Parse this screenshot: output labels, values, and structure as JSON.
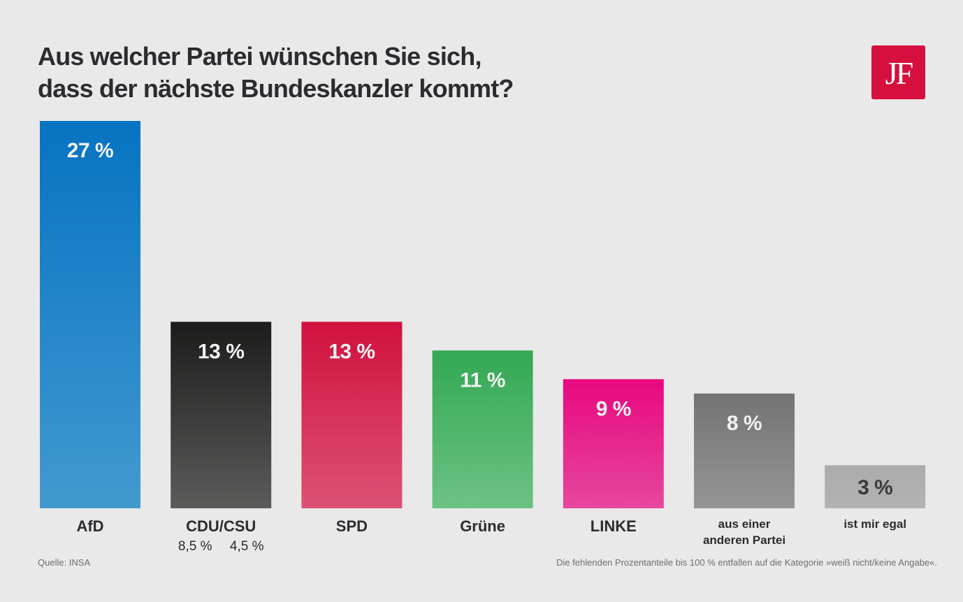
{
  "header": {
    "title_line1": "Aus welcher Partei wünschen Sie sich,",
    "title_line2": "dass der nächste Bundeskanzler kommt?",
    "logo_text": "JF"
  },
  "footer": {
    "source": "Quelle: INSA",
    "note": "Die fehlenden Prozentanteile bis 100 % entfallen auf die Kategorie »weiß nicht/keine Angabe«."
  },
  "colors": {
    "background": "#e9e9e9",
    "logo": "#d5103f",
    "text": "#2b2b30"
  },
  "chart_data": {
    "type": "bar",
    "title": "Aus welcher Partei wünschen Sie sich, dass der nächste Bundeskanzler kommt?",
    "xlabel": "",
    "ylabel": "",
    "ylim": [
      0,
      27
    ],
    "grid": false,
    "categories": [
      "AfD",
      "CDU/CSU",
      "SPD",
      "Grüne",
      "LINKE",
      "aus einer anderen Partei",
      "ist mir egal"
    ],
    "values": [
      27,
      13,
      13,
      11,
      9,
      8,
      3
    ],
    "unit": "%",
    "bars": [
      {
        "category": "AfD",
        "label_lines": [
          "AfD"
        ],
        "value": 27,
        "value_label": "27 %",
        "color_top": "#0673c2",
        "color_bottom": "#4299cf",
        "text_color": "#f2f2f2"
      },
      {
        "category": "CDU/CSU",
        "label_lines": [
          "CDU/CSU"
        ],
        "sub_labels": [
          "8,5 %",
          "4,5 %"
        ],
        "sub_values": {
          "CDU": 8.5,
          "CSU": 4.5
        },
        "value": 13,
        "value_label": "13 %",
        "color_top": "#1c1c1b",
        "color_bottom": "#5b5b5a",
        "text_color": "#f2f2f2"
      },
      {
        "category": "SPD",
        "label_lines": [
          "SPD"
        ],
        "value": 13,
        "value_label": "13 %",
        "color_top": "#d1103e",
        "color_bottom": "#dc5274",
        "text_color": "#f2f2f2"
      },
      {
        "category": "Grüne",
        "label_lines": [
          "Grüne"
        ],
        "value": 11,
        "value_label": "11 %",
        "color_top": "#33a853",
        "color_bottom": "#6cc284",
        "text_color": "#f2f2f2"
      },
      {
        "category": "LINKE",
        "label_lines": [
          "LINKE"
        ],
        "value": 9,
        "value_label": "9 %",
        "color_top": "#e8087f",
        "color_bottom": "#e6479e",
        "text_color": "#f2f2f2"
      },
      {
        "category": "aus einer anderen Partei",
        "label_lines": [
          "aus einer",
          "anderen Partei"
        ],
        "value": 8,
        "value_label": "8 %",
        "color_top": "#737373",
        "color_bottom": "#959595",
        "text_color": "#f2f2f2"
      },
      {
        "category": "ist mir egal",
        "label_lines": [
          "ist mir egal"
        ],
        "value": 3,
        "value_label": "3 %",
        "color_top": "#ababab",
        "color_bottom": "#b3b3b3",
        "text_color": "#3a3a3a"
      }
    ]
  }
}
